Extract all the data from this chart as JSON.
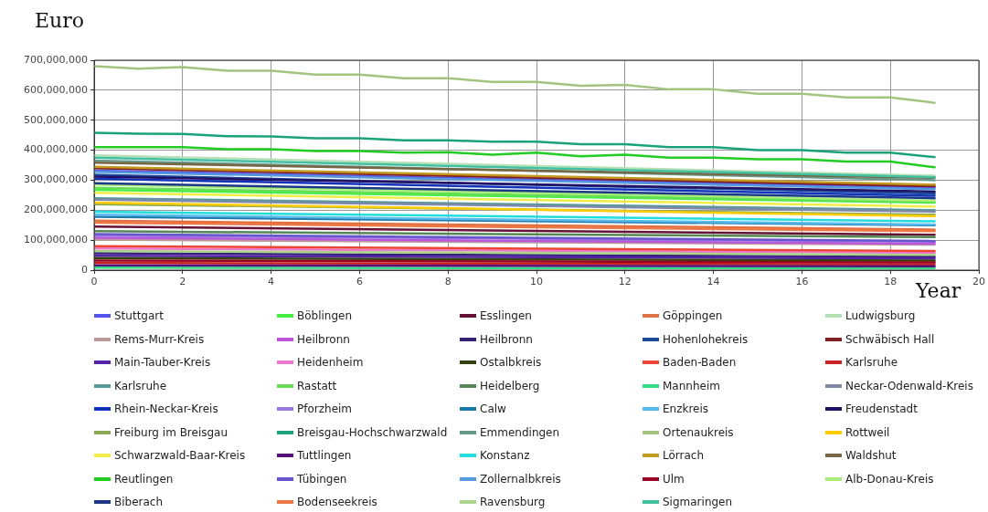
{
  "chart_data": {
    "type": "line",
    "ylabel": "Euro",
    "xlabel": "Year",
    "xlim": [
      0,
      20
    ],
    "xticks": [
      0,
      2,
      4,
      6,
      8,
      10,
      12,
      14,
      16,
      18,
      20
    ],
    "ylim": [
      0,
      700000000
    ],
    "yticks": [
      0,
      {
        "value": 100000000,
        "label": "100,000,000"
      },
      {
        "value": 200000000,
        "label": "200,000,000"
      },
      {
        "value": 300000000,
        "label": "300,000,000"
      },
      {
        "value": 400000000,
        "label": "400,000,000"
      },
      {
        "value": 500000000,
        "label": "500,000,000"
      },
      {
        "value": 600000000,
        "label": "600,000,000"
      },
      {
        "value": 700000000,
        "label": "700,000,000"
      }
    ],
    "grid": true,
    "legend": "bottom",
    "marker": "none",
    "line_style": "solid",
    "series": [
      {
        "name": "Stuttgart",
        "color": "#5555ee",
        "x": [
          0,
          19
        ],
        "values": [
          332000000,
          275000000
        ]
      },
      {
        "name": "Böblingen",
        "color": "#44ee44",
        "x": [
          0,
          19
        ],
        "values": [
          268000000,
          225000000
        ]
      },
      {
        "name": "Esslingen",
        "color": "#661133",
        "x": [
          0,
          19
        ],
        "values": [
          145000000,
          118000000
        ]
      },
      {
        "name": "Göppingen",
        "color": "#e07040",
        "x": [
          0,
          19
        ],
        "values": [
          165000000,
          135000000
        ]
      },
      {
        "name": "Ludwigsburg",
        "color": "#b5e0b5",
        "x": [
          0,
          19
        ],
        "values": [
          383000000,
          315000000
        ]
      },
      {
        "name": "Rems-Murr-Kreis",
        "color": "#bb9999",
        "x": [
          0,
          19
        ],
        "values": [
          102000000,
          85000000
        ]
      },
      {
        "name": "Heilbronn",
        "color": "#bb55dd",
        "x": [
          0,
          19
        ],
        "values": [
          108000000,
          88000000
        ]
      },
      {
        "name": "Heilbronn",
        "color": "#332277",
        "x": [
          0,
          19
        ],
        "values": [
          56000000,
          45000000
        ]
      },
      {
        "name": "Hohenlohekreis",
        "color": "#1a4a99",
        "x": [
          0,
          19
        ],
        "values": [
          318000000,
          255000000
        ]
      },
      {
        "name": "Schwäbisch Hall",
        "color": "#802020",
        "x": [
          0,
          19
        ],
        "values": [
          340000000,
          280000000
        ]
      },
      {
        "name": "Main-Tauber-Kreis",
        "color": "#5522aa",
        "x": [
          0,
          19
        ],
        "values": [
          48000000,
          39000000
        ]
      },
      {
        "name": "Heidenheim",
        "color": "#ee77cc",
        "x": [
          0,
          19
        ],
        "values": [
          72000000,
          58000000
        ]
      },
      {
        "name": "Ostalbkreis",
        "color": "#334411",
        "x": [
          0,
          19
        ],
        "values": [
          40000000,
          32000000
        ]
      },
      {
        "name": "Baden-Baden",
        "color": "#ee4433",
        "x": [
          0,
          19
        ],
        "values": [
          80000000,
          64000000
        ]
      },
      {
        "name": "Karlsruhe",
        "color": "#cc2222",
        "x": [
          0,
          19
        ],
        "values": [
          24000000,
          19000000
        ]
      },
      {
        "name": "Karlsruhe",
        "color": "#559999",
        "x": [
          0,
          19
        ],
        "values": [
          240000000,
          200000000
        ]
      },
      {
        "name": "Rastatt",
        "color": "#66dd55",
        "x": [
          0,
          19
        ],
        "values": [
          275000000,
          228000000
        ]
      },
      {
        "name": "Heidelberg",
        "color": "#558855",
        "x": [
          0,
          19
        ],
        "values": [
          130000000,
          110000000
        ]
      },
      {
        "name": "Mannheim",
        "color": "#33dd88",
        "x": [
          0,
          19
        ],
        "values": [
          8000000,
          6000000
        ]
      },
      {
        "name": "Neckar-Odenwald-Kreis",
        "color": "#8088aa",
        "x": [
          0,
          19
        ],
        "values": [
          235000000,
          195000000
        ]
      },
      {
        "name": "Rhein-Neckar-Kreis",
        "color": "#1133bb",
        "x": [
          0,
          19
        ],
        "values": [
          305000000,
          248000000
        ]
      },
      {
        "name": "Pforzheim",
        "color": "#9977dd",
        "x": [
          0,
          19
        ],
        "values": [
          115000000,
          95000000
        ]
      },
      {
        "name": "Calw",
        "color": "#2277aa",
        "x": [
          0,
          19
        ],
        "values": [
          178000000,
          150000000
        ]
      },
      {
        "name": "Enzkreis",
        "color": "#55bbee",
        "x": [
          0,
          19
        ],
        "values": [
          185000000,
          152000000
        ]
      },
      {
        "name": "Freudenstadt",
        "color": "#221166",
        "x": [
          0,
          19
        ],
        "values": [
          312000000,
          262000000
        ]
      },
      {
        "name": "Freiburg im Breisgau",
        "color": "#88aa55",
        "x": [
          0,
          19
        ],
        "values": [
          220000000,
          185000000
        ]
      },
      {
        "name": "Breisgau-Hochschwarzwald",
        "color": "#1aa37a",
        "x": [
          0,
          1,
          2,
          3,
          4,
          5,
          6,
          7,
          8,
          9,
          10,
          11,
          12,
          13,
          14,
          15,
          16,
          17,
          18,
          19
        ],
        "values": [
          458000000,
          455000000,
          454000000,
          447000000,
          446000000,
          440000000,
          440000000,
          433000000,
          433000000,
          428000000,
          428000000,
          420000000,
          420000000,
          410000000,
          410000000,
          400000000,
          400000000,
          392000000,
          392000000,
          377000000
        ]
      },
      {
        "name": "Emmendingen",
        "color": "#66998a",
        "x": [
          0,
          19
        ],
        "values": [
          365000000,
          300000000
        ]
      },
      {
        "name": "Ortenaukreis",
        "color": "#a3c47f",
        "x": [
          0,
          1,
          2,
          3,
          4,
          5,
          6,
          7,
          8,
          9,
          10,
          11,
          12,
          13,
          14,
          15,
          16,
          17,
          18,
          19
        ],
        "values": [
          680000000,
          672000000,
          677000000,
          665000000,
          665000000,
          652000000,
          652000000,
          640000000,
          640000000,
          628000000,
          628000000,
          615000000,
          618000000,
          603000000,
          603000000,
          588000000,
          588000000,
          576000000,
          576000000,
          558000000
        ]
      },
      {
        "name": "Rottweil",
        "color": "#ffcc00",
        "x": [
          0,
          19
        ],
        "values": [
          225000000,
          180000000
        ]
      },
      {
        "name": "Schwarzwald-Baar-Kreis",
        "color": "#eeee44",
        "x": [
          0,
          19
        ],
        "values": [
          258000000,
          212000000
        ]
      },
      {
        "name": "Tuttlingen",
        "color": "#551177",
        "x": [
          0,
          19
        ],
        "values": [
          16000000,
          13000000
        ]
      },
      {
        "name": "Konstanz",
        "color": "#22dddd",
        "x": [
          0,
          19
        ],
        "values": [
          195000000,
          163000000
        ]
      },
      {
        "name": "Lörrach",
        "color": "#c09a20",
        "x": [
          0,
          19
        ],
        "values": [
          345000000,
          285000000
        ]
      },
      {
        "name": "Waldshut",
        "color": "#776644",
        "x": [
          0,
          19
        ],
        "values": [
          358000000,
          308000000
        ]
      },
      {
        "name": "Reutlingen",
        "color": "#22cc22",
        "x": [
          0,
          1,
          2,
          3,
          4,
          5,
          6,
          7,
          8,
          9,
          10,
          11,
          12,
          13,
          14,
          15,
          16,
          17,
          18,
          19
        ],
        "values": [
          410000000,
          410000000,
          410000000,
          403000000,
          403000000,
          397000000,
          397000000,
          392000000,
          393000000,
          385000000,
          392000000,
          380000000,
          385000000,
          375000000,
          375000000,
          370000000,
          370000000,
          362000000,
          362000000,
          343000000
        ]
      },
      {
        "name": "Tübingen",
        "color": "#6655cc",
        "x": [
          0,
          19
        ],
        "values": [
          120000000,
          97000000
        ]
      },
      {
        "name": "Zollernalbkreis",
        "color": "#5599dd",
        "x": [
          0,
          19
        ],
        "values": [
          328000000,
          270000000
        ]
      },
      {
        "name": "Ulm",
        "color": "#990022",
        "x": [
          0,
          19
        ],
        "values": [
          32000000,
          26000000
        ]
      },
      {
        "name": "Alb-Donau-Kreis",
        "color": "#aaee77",
        "x": [
          0,
          19
        ],
        "values": [
          285000000,
          232000000
        ]
      },
      {
        "name": "Biberach",
        "color": "#1a3a88",
        "x": [
          0,
          19
        ],
        "values": [
          290000000,
          240000000
        ]
      },
      {
        "name": "Bodenseekreis",
        "color": "#ee7744",
        "x": [
          0,
          19
        ],
        "values": [
          158000000,
          130000000
        ]
      },
      {
        "name": "Ravensburg",
        "color": "#aad488",
        "x": [
          0,
          19
        ],
        "values": [
          64000000,
          51000000
        ]
      },
      {
        "name": "Sigmaringen",
        "color": "#40c0a0",
        "x": [
          0,
          19
        ],
        "values": [
          375000000,
          310000000
        ]
      }
    ]
  }
}
